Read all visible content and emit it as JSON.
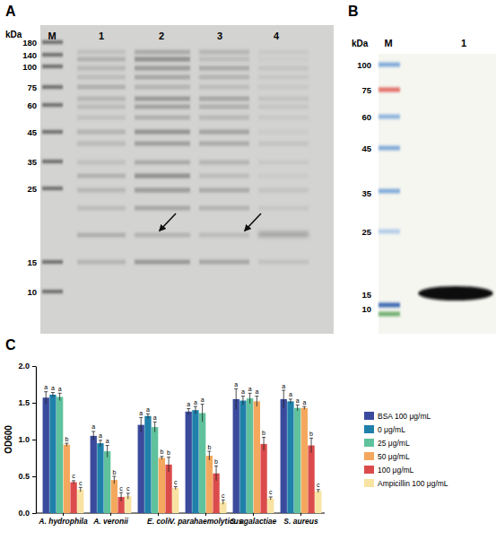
{
  "gel_a": {
    "panel_label": "A",
    "unit": "kDa",
    "lanes": [
      "M",
      "1",
      "2",
      "3",
      "4"
    ],
    "markers": [
      180,
      140,
      100,
      75,
      60,
      45,
      35,
      25,
      15,
      10
    ]
  },
  "blot_b": {
    "panel_label": "B",
    "unit": "kDa",
    "lanes": [
      "M",
      "1"
    ],
    "markers": [
      100,
      75,
      60,
      45,
      35,
      25,
      15,
      10
    ]
  },
  "chart_data": {
    "type": "bar",
    "title": "C",
    "y_label": "OD600",
    "categories": [
      "A. hydrophila",
      "A. veronii",
      "E. coli",
      "V. parahaemolyticus",
      "S. agalactiae",
      "S. aureus"
    ],
    "series": [
      {
        "name": "BSA 100 μg/mL",
        "color": "#3a4a9c",
        "values": [
          1.57,
          1.05,
          1.2,
          1.38,
          1.55,
          1.55
        ],
        "errors": [
          0.08,
          0.06,
          0.1,
          0.04,
          0.14,
          0.12
        ],
        "letters": [
          "a",
          "a",
          "a",
          "a",
          "a",
          "a"
        ]
      },
      {
        "name": "0 μg/mL",
        "color": "#1f80aa",
        "values": [
          1.61,
          0.95,
          1.32,
          1.4,
          1.53,
          1.52
        ],
        "errors": [
          0.03,
          0.04,
          0.03,
          0.05,
          0.06,
          0.03
        ],
        "letters": [
          "a",
          "a",
          "a",
          "a",
          "a",
          "a"
        ]
      },
      {
        "name": "25 μg/mL",
        "color": "#5fc29c",
        "values": [
          1.58,
          0.84,
          1.17,
          1.36,
          1.56,
          1.43
        ],
        "errors": [
          0.05,
          0.08,
          0.07,
          0.12,
          0.07,
          0.04
        ],
        "letters": [
          "a",
          "a",
          "a",
          "a",
          "a",
          "a"
        ]
      },
      {
        "name": "50 μg/mL",
        "color": "#f4a85e",
        "values": [
          0.93,
          0.45,
          0.75,
          0.78,
          1.52,
          1.43
        ],
        "errors": [
          0.02,
          0.05,
          0.02,
          0.06,
          0.07,
          0.02
        ],
        "letters": [
          "b",
          "b",
          "b",
          "b",
          "a",
          "a"
        ]
      },
      {
        "name": "100 μg/mL",
        "color": "#dc4b4b",
        "values": [
          0.42,
          0.22,
          0.66,
          0.54,
          0.94,
          0.92
        ],
        "errors": [
          0.02,
          0.06,
          0.1,
          0.1,
          0.09,
          0.1
        ],
        "letters": [
          "c",
          "c",
          "b",
          "b",
          "b",
          "b"
        ]
      },
      {
        "name": "Ampicillin 100 μg/mL",
        "color": "#f9e3a2",
        "values": [
          0.32,
          0.23,
          0.34,
          0.15,
          0.2,
          0.3
        ],
        "errors": [
          0.03,
          0.04,
          0.02,
          0.03,
          0.02,
          0.02
        ],
        "letters": [
          "c",
          "c",
          "c",
          "c",
          "c",
          "c"
        ]
      }
    ],
    "ylim": [
      0,
      2.0
    ],
    "yticks": [
      {
        "value": 0,
        "label": "0.0"
      },
      {
        "value": 0.5,
        "label": "0.5"
      },
      {
        "value": 1.0,
        "label": "1.0"
      },
      {
        "value": 1.5,
        "label": "1.5"
      },
      {
        "value": 2.0,
        "label": "2.0"
      }
    ],
    "legend": "right"
  }
}
